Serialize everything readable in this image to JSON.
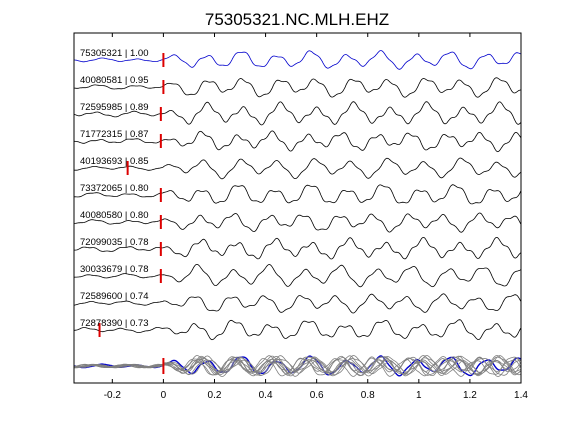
{
  "chart_data": {
    "type": "line",
    "title": "75305321.NC.MLH.EHZ",
    "xlabel": "",
    "ylabel": "",
    "xlim": [
      -0.35,
      1.4
    ],
    "xticks": [
      "-0.2",
      "0",
      "0.2",
      "0.4",
      "0.6",
      "0.8",
      "1",
      "1.2",
      "1.4"
    ],
    "xtick_values": [
      -0.2,
      0,
      0.2,
      0.4,
      0.6,
      0.8,
      1.0,
      1.2,
      1.4
    ],
    "grid": false,
    "legend": "none",
    "colors": {
      "reference": "#0000cc",
      "trace": "#000000",
      "pick": "#dd0000",
      "stack": "#808080"
    },
    "series": [
      {
        "label": "75305321 | 1.00",
        "pick_time": 0.0,
        "color": "#0000cc"
      },
      {
        "label": "40080581 | 0.95",
        "pick_time": 0.0,
        "color": "#000000"
      },
      {
        "label": "72595985 | 0.89",
        "pick_time": -0.01,
        "color": "#000000"
      },
      {
        "label": "71772315 | 0.87",
        "pick_time": -0.01,
        "color": "#000000"
      },
      {
        "label": "40193693 | 0.85",
        "pick_time": -0.14,
        "color": "#000000"
      },
      {
        "label": "73372065 | 0.80",
        "pick_time": -0.01,
        "color": "#000000"
      },
      {
        "label": "40080580 | 0.80",
        "pick_time": -0.01,
        "color": "#000000"
      },
      {
        "label": "72099035 | 0.78",
        "pick_time": -0.01,
        "color": "#000000"
      },
      {
        "label": "30033679 | 0.78",
        "pick_time": -0.01,
        "color": "#000000"
      },
      {
        "label": "72589600 | 0.74",
        "pick_time": null,
        "color": "#000000"
      },
      {
        "label": "72878390 | 0.73",
        "pick_time": -0.25,
        "color": "#000000"
      }
    ]
  }
}
